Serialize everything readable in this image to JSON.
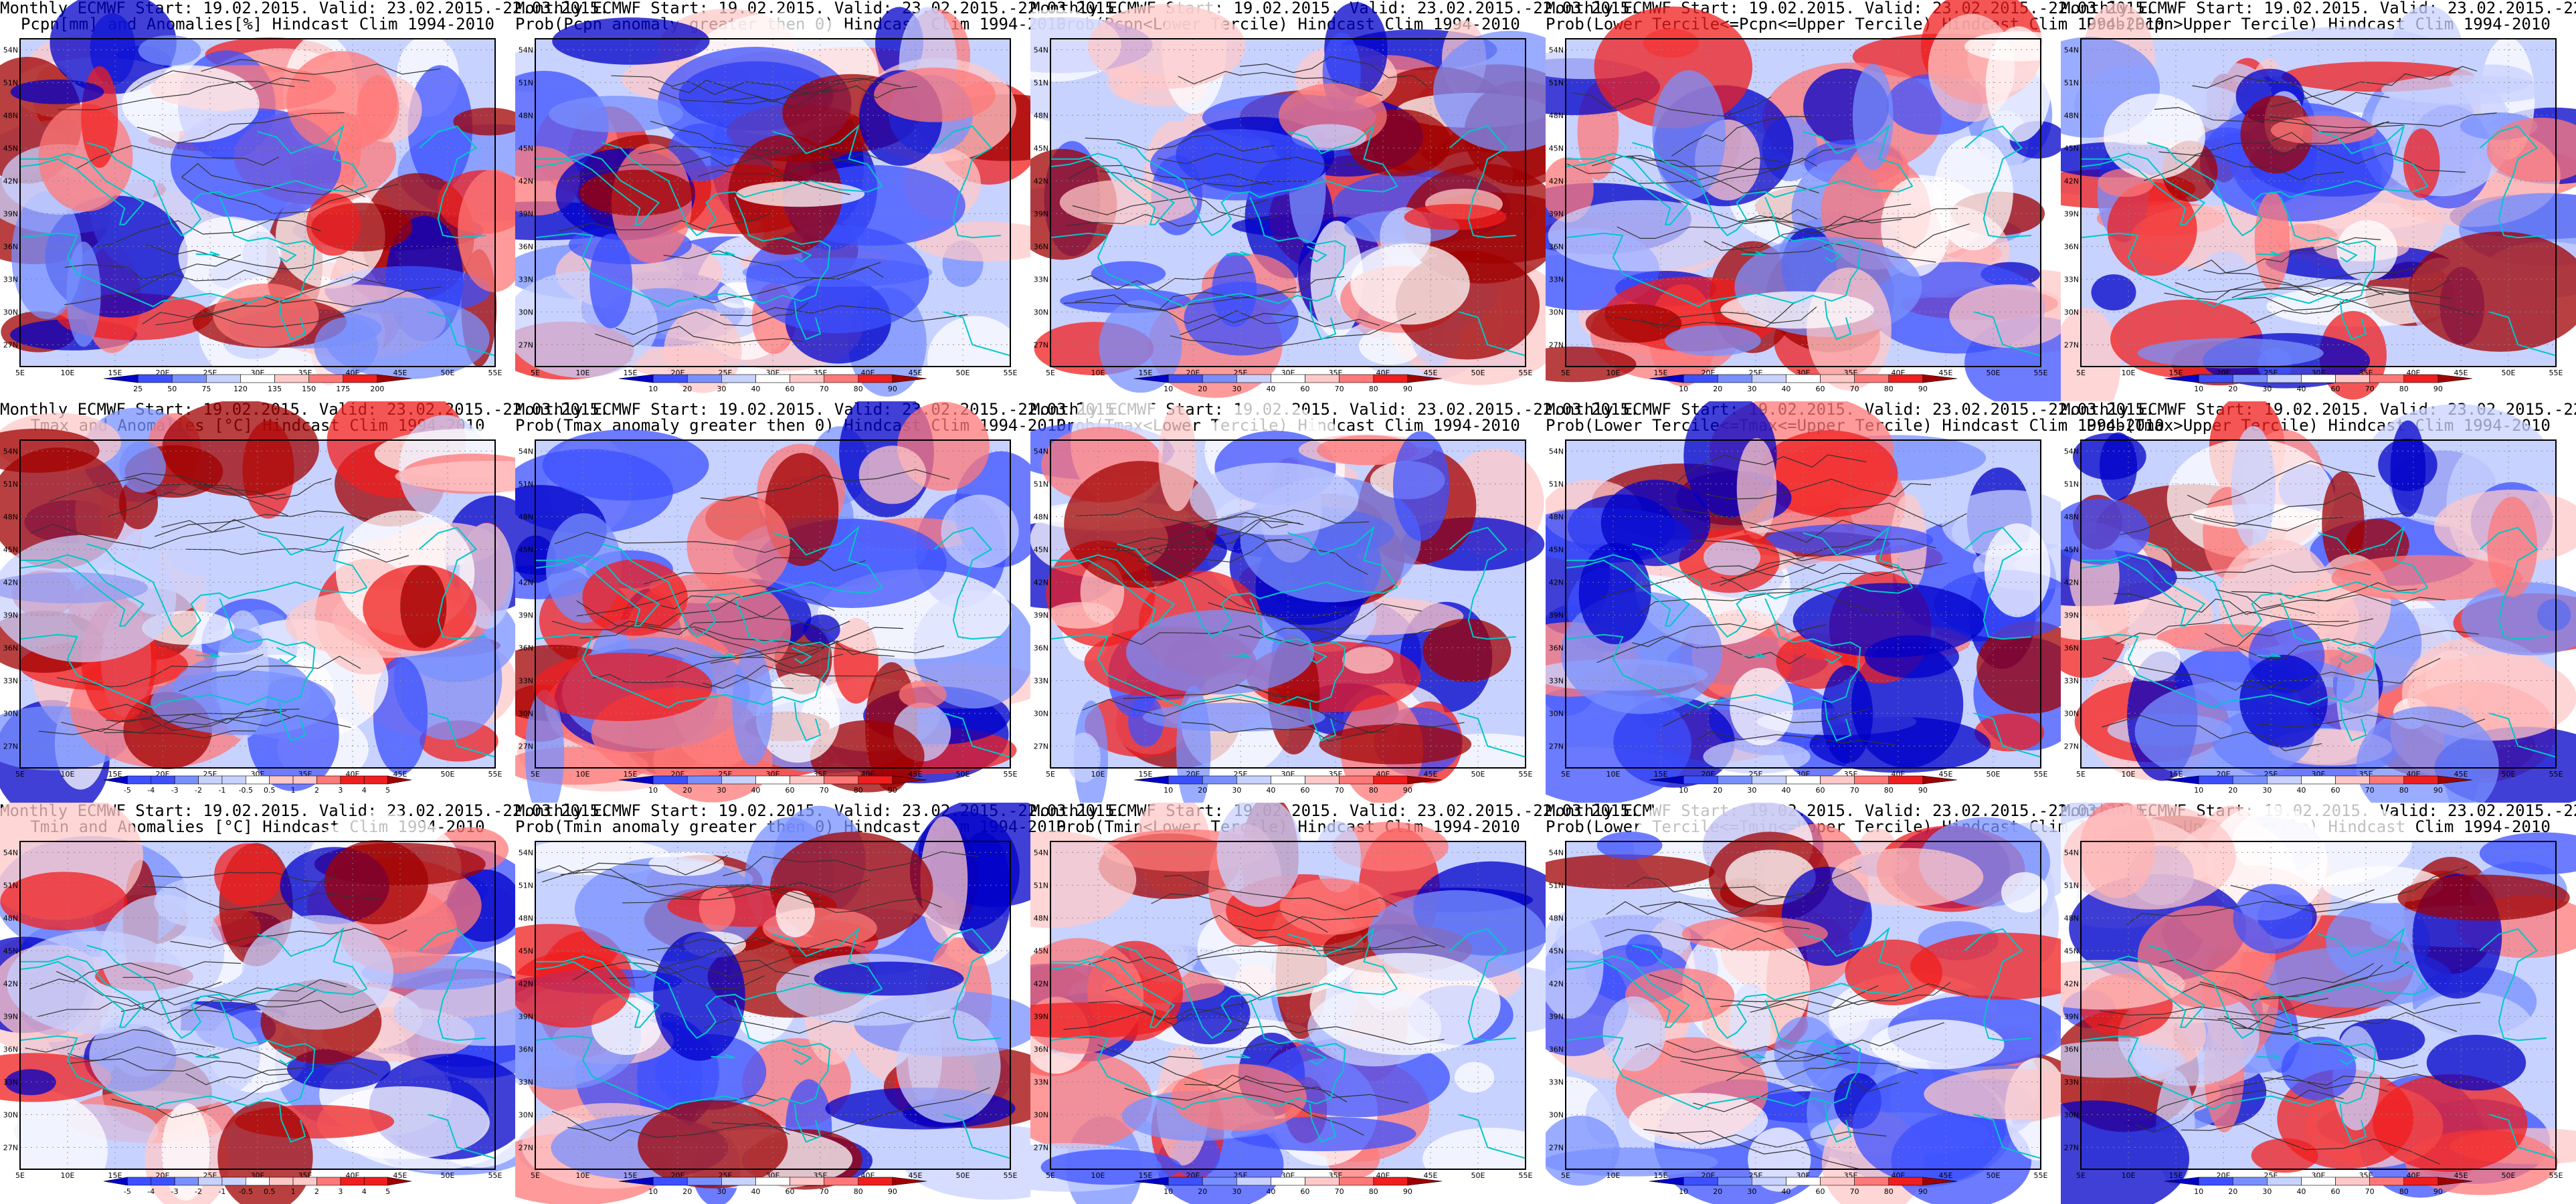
{
  "header_line": "Monthly ECMWF Start: 19.02.2015. Valid: 23.02.2015.-22.03.2015.",
  "lon_labels": [
    "5E",
    "10E",
    "15E",
    "20E",
    "25E",
    "30E",
    "35E",
    "40E",
    "45E",
    "50E",
    "55E"
  ],
  "lat_labels": [
    "54N",
    "51N",
    "48N",
    "45N",
    "42N",
    "39N",
    "36N",
    "33N",
    "30N",
    "27N"
  ],
  "legends": {
    "pcpn_anom": [
      "25",
      "50",
      "75",
      "120",
      "135",
      "150",
      "175",
      "200"
    ],
    "temp_anom": [
      "-5",
      "-4",
      "-3",
      "-2",
      "-1",
      "-0.5",
      "0.5",
      "1",
      "2",
      "3",
      "4",
      "5"
    ],
    "prob": [
      "10",
      "20",
      "30",
      "40",
      "60",
      "70",
      "80",
      "90"
    ]
  },
  "colors": {
    "dark_blue": "#0000c8",
    "blue": "#3c50ff",
    "mid_blue": "#7890ff",
    "light_blue": "#c8d2ff",
    "white": "#ffffff",
    "light_red": "#ffc8c8",
    "mid_red": "#ff7878",
    "red": "#f01e1e",
    "dark_red": "#a00000",
    "coast": "#00c8c8",
    "contour": "#333333"
  },
  "panels": [
    {
      "row": 0,
      "col": 0,
      "title2": "Pcpn[mm] and Anomalies[%] Hindcast Clim 1994-2010",
      "legend": "pcpn_anom",
      "show_header": true
    },
    {
      "row": 0,
      "col": 1,
      "title2": "Prob(Pcpn anomaly greater then 0) Hindcast Clim 1994-2010",
      "legend": "prob",
      "show_header": true
    },
    {
      "row": 0,
      "col": 2,
      "title2": "Prob(Pcpn<Lower Tercile) Hindcast Clim 1994-2010",
      "legend": "prob",
      "show_header": true
    },
    {
      "row": 0,
      "col": 3,
      "title2": "Prob(Lower Tercile<=Pcpn<=Upper Tercile) Hindcast Clim 1994-2010",
      "legend": "prob",
      "show_header": true
    },
    {
      "row": 0,
      "col": 4,
      "title2": "Prob(Pcpn>Upper Tercile) Hindcast Clim 1994-2010",
      "legend": "prob",
      "show_header": true
    },
    {
      "row": 1,
      "col": 0,
      "title2": "Tmax and Anomalies [°C] Hindcast Clim 1994-2010",
      "legend": "temp_anom",
      "show_header": true
    },
    {
      "row": 1,
      "col": 1,
      "title2": "Prob(Tmax anomaly greater then 0) Hindcast Clim 1994-2010",
      "legend": "prob",
      "show_header": true
    },
    {
      "row": 1,
      "col": 2,
      "title2": "Prob(Tmax<Lower Tercile) Hindcast Clim 1994-2010",
      "legend": "prob",
      "show_header": true
    },
    {
      "row": 1,
      "col": 3,
      "title2": "Prob(Lower Tercile<=Tmax<=Upper Tercile) Hindcast Clim 1994-2010",
      "legend": "prob",
      "show_header": true
    },
    {
      "row": 1,
      "col": 4,
      "title2": "Prob(Tmax>Upper Tercile) Hindcast Clim 1994-2010",
      "legend": "prob",
      "show_header": true
    },
    {
      "row": 2,
      "col": 0,
      "title2": "Tmin and Anomalies [°C] Hindcast Clim 1994-2010",
      "legend": "temp_anom",
      "show_header": true
    },
    {
      "row": 2,
      "col": 1,
      "title2": "Prob(Tmin anomaly greater then 0) Hindcast Clim 1994-2010",
      "legend": "prob",
      "show_header": true
    },
    {
      "row": 2,
      "col": 2,
      "title2": "Prob(Tmin<Lower Tercile) Hindcast Clim 1994-2010",
      "legend": "prob",
      "show_header": true
    },
    {
      "row": 2,
      "col": 3,
      "title2": "Prob(Lower Tercile<=Tmin<=Upper Tercile) Hindcast Clim 1994-2010",
      "legend": "prob",
      "show_header": true
    },
    {
      "row": 2,
      "col": 4,
      "title2": "Prob(Tmin>Upper Tercile) Hindcast Clim 1994-2010",
      "legend": "prob",
      "show_header": true
    }
  ]
}
